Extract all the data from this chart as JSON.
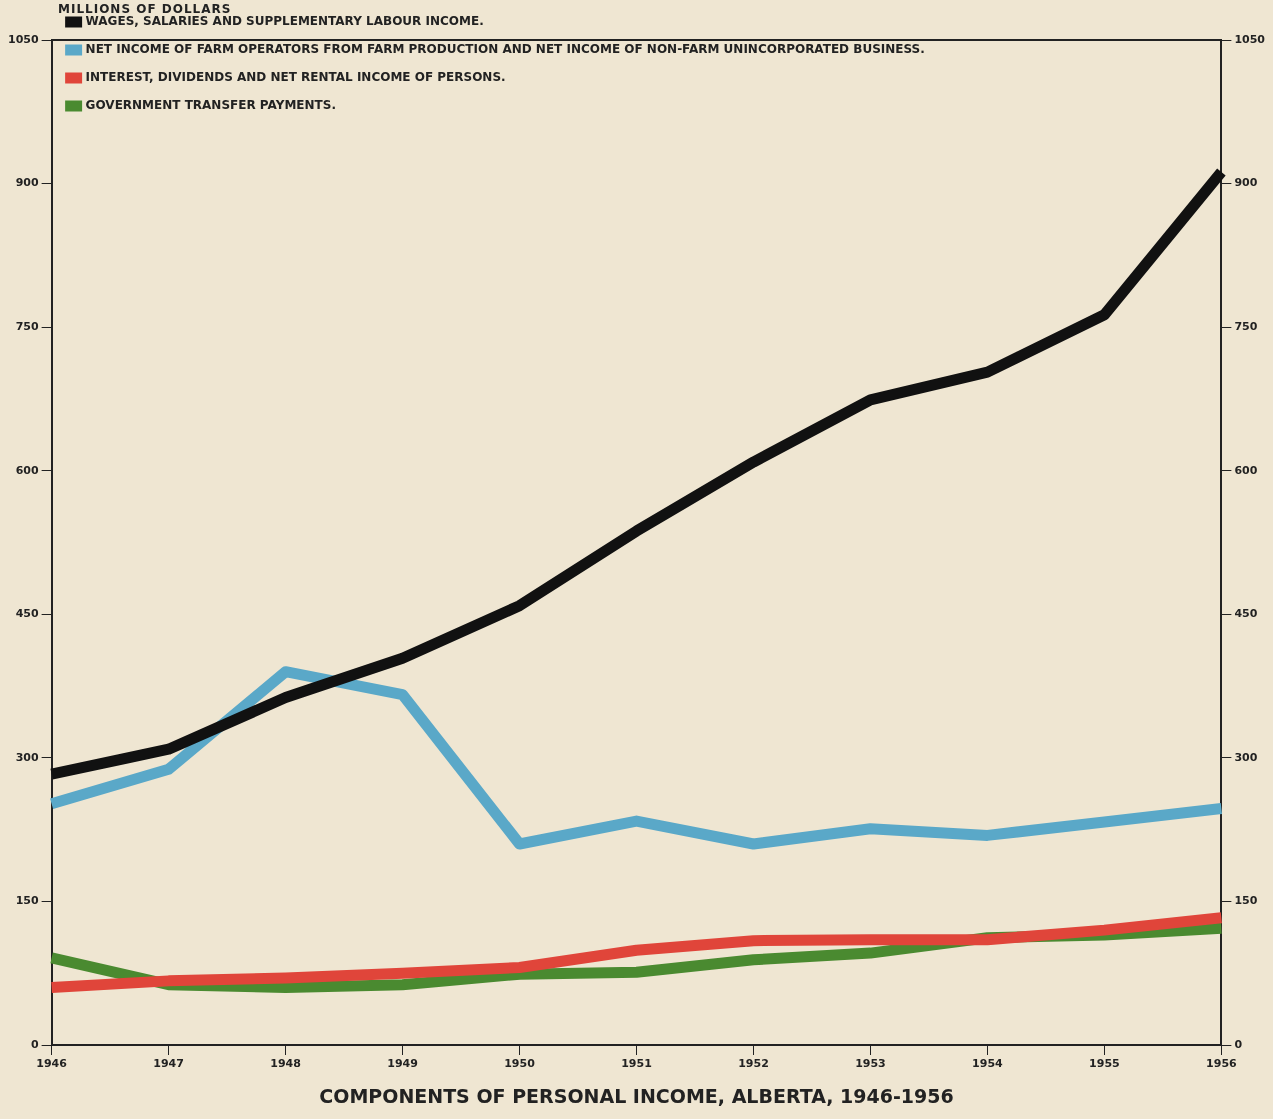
{
  "chart_data": {
    "type": "line",
    "title": "COMPONENTS OF PERSONAL INCOME, ALBERTA, 1946-1956",
    "ylabel": "MILLIONS OF DOLLARS",
    "categories": [
      "1946",
      "1947",
      "1948",
      "1949",
      "1950",
      "1951",
      "1952",
      "1953",
      "1954",
      "1955",
      "1956"
    ],
    "ylim": [
      0,
      1050
    ],
    "yticks": [
      0,
      150,
      300,
      450,
      600,
      750,
      900,
      1050
    ],
    "y2lim": [
      0,
      1050
    ],
    "y2ticks": [
      0,
      150,
      300,
      450,
      600,
      750,
      900,
      1050
    ],
    "grid": false,
    "legend": "top left",
    "marker": "none",
    "line_style": "solid",
    "series": [
      {
        "name": "WAGES, SALARIES AND SUPPLEMENTARY LABOUR INCOME.",
        "color": "#111111",
        "values": [
          283,
          309,
          363,
          404,
          459,
          537,
          609,
          674,
          703,
          763,
          912
        ]
      },
      {
        "name": "NET INCOME OF FARM OPERATORS FROM FARM PRODUCTION AND NET INCOME OF NON-FARM UNINCORPORATED BUSINESS.",
        "color": "#5aa8c8",
        "values": [
          252,
          288,
          390,
          366,
          210,
          234,
          210,
          226,
          219,
          233,
          247
        ]
      },
      {
        "name": "INTEREST, DIVIDENDS AND NET RENTAL INCOME OF PERSONS.",
        "color": "#e0453a",
        "values": [
          60,
          67,
          70,
          75,
          81,
          99,
          109,
          110,
          110,
          120,
          133
        ]
      },
      {
        "name": "GOVERNMENT TRANSFER PAYMENTS.",
        "color": "#4a8a30",
        "values": [
          91,
          63,
          60,
          63,
          74,
          76,
          89,
          96,
          112,
          115,
          122
        ]
      }
    ]
  }
}
